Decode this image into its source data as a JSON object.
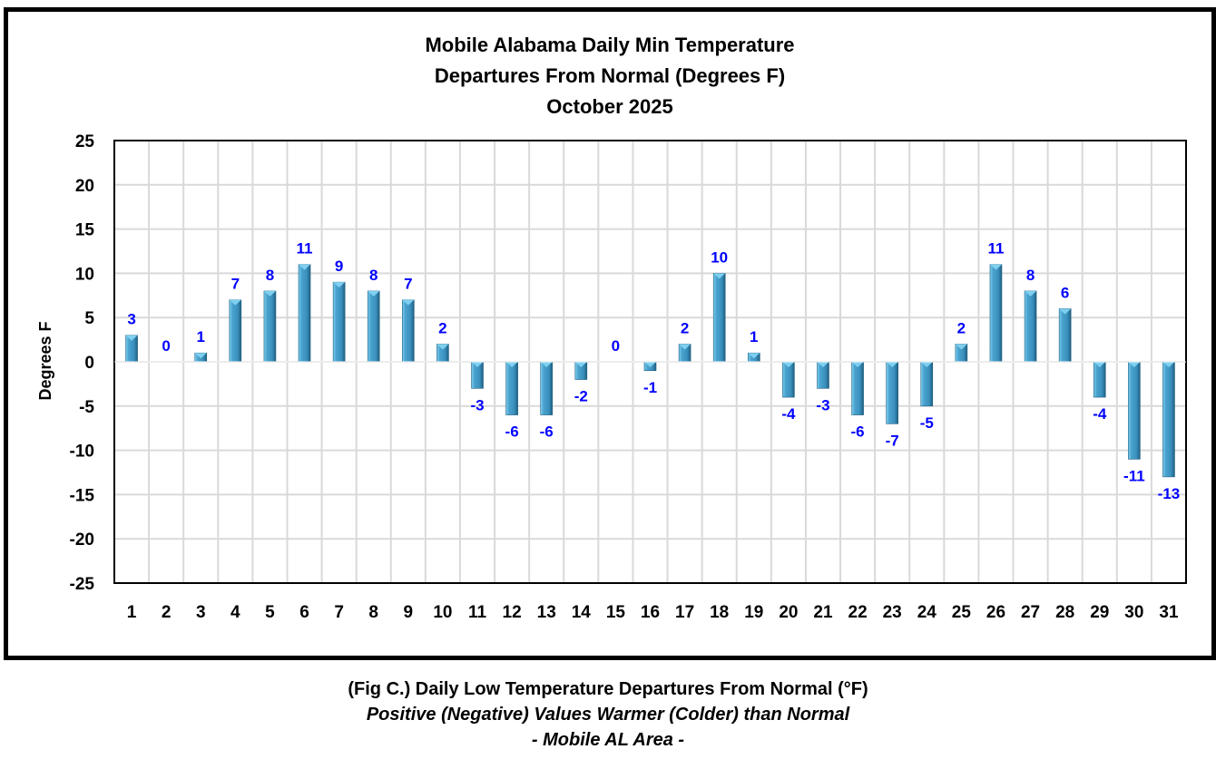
{
  "chart_data": {
    "type": "bar",
    "title": [
      "Mobile Alabama Daily Min Temperature",
      "Departures From Normal (Degrees F)",
      "October 2025"
    ],
    "xlabel": "",
    "ylabel": "Degrees F",
    "ylim": [
      -25,
      25
    ],
    "yticks": [
      25,
      20,
      15,
      10,
      5,
      0,
      -5,
      -10,
      -15,
      -20,
      -25
    ],
    "grid": true,
    "legend": "none",
    "categories": [
      "1",
      "2",
      "3",
      "4",
      "5",
      "6",
      "7",
      "8",
      "9",
      "10",
      "11",
      "12",
      "13",
      "14",
      "15",
      "16",
      "17",
      "18",
      "19",
      "20",
      "21",
      "22",
      "23",
      "24",
      "25",
      "26",
      "27",
      "28",
      "29",
      "30",
      "31"
    ],
    "values": [
      3,
      0,
      1,
      7,
      8,
      11,
      9,
      8,
      7,
      2,
      -3,
      -6,
      -6,
      -2,
      0,
      -1,
      2,
      10,
      1,
      -4,
      -3,
      -6,
      -7,
      -5,
      2,
      11,
      8,
      6,
      -4,
      -11,
      -13
    ],
    "colors": {
      "bar": "#4aa3cf",
      "bar_light": "#7fd0f0",
      "bar_dark": "#1f5f80",
      "data_label": "#0000ff",
      "grid": "#d9d9d9"
    }
  },
  "caption": {
    "line1": "(Fig C.) Daily Low Temperature Departures From Normal (°F)",
    "line2": "Positive (Negative) Values Warmer (Colder) than Normal",
    "line3": "- Mobile AL Area -"
  }
}
